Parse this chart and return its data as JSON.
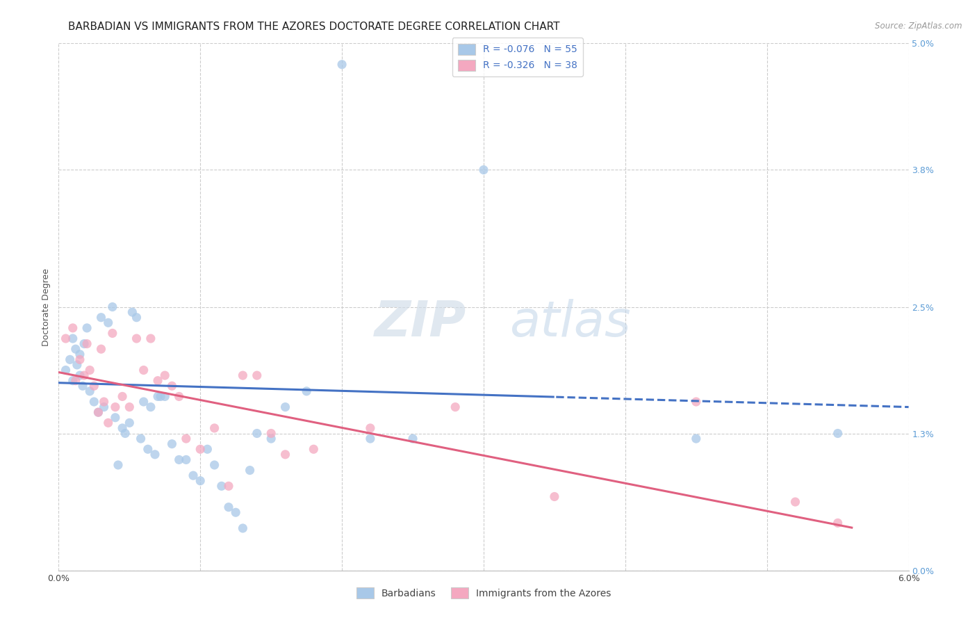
{
  "title": "BARBADIAN VS IMMIGRANTS FROM THE AZORES DOCTORATE DEGREE CORRELATION CHART",
  "source": "Source: ZipAtlas.com",
  "ylabel": "Doctorate Degree",
  "ytick_vals": [
    0.0,
    1.3,
    2.5,
    3.8,
    5.0
  ],
  "xlim": [
    0.0,
    6.0
  ],
  "ylim": [
    0.0,
    5.0
  ],
  "legend_label1": "R = -0.076   N = 55",
  "legend_label2": "R = -0.326   N = 38",
  "legend_bottom1": "Barbadians",
  "legend_bottom2": "Immigrants from the Azores",
  "color_blue": "#a8c8e8",
  "color_pink": "#f4a8c0",
  "color_blue_line": "#4472c4",
  "color_pink_line": "#e06080",
  "watermark_zip": "ZIP",
  "watermark_atlas": "atlas",
  "barbadians_x": [
    0.05,
    0.08,
    0.1,
    0.1,
    0.12,
    0.13,
    0.15,
    0.15,
    0.17,
    0.18,
    0.2,
    0.22,
    0.25,
    0.28,
    0.3,
    0.32,
    0.35,
    0.38,
    0.4,
    0.42,
    0.45,
    0.47,
    0.5,
    0.52,
    0.55,
    0.58,
    0.6,
    0.63,
    0.65,
    0.68,
    0.7,
    0.72,
    0.75,
    0.8,
    0.85,
    0.9,
    0.95,
    1.0,
    1.05,
    1.1,
    1.15,
    1.2,
    1.25,
    1.3,
    1.35,
    1.4,
    1.5,
    1.6,
    1.75,
    2.0,
    2.2,
    2.5,
    3.0,
    4.5,
    5.5
  ],
  "barbadians_y": [
    1.9,
    2.0,
    2.2,
    1.8,
    2.1,
    1.95,
    1.85,
    2.05,
    1.75,
    2.15,
    2.3,
    1.7,
    1.6,
    1.5,
    2.4,
    1.55,
    2.35,
    2.5,
    1.45,
    1.0,
    1.35,
    1.3,
    1.4,
    2.45,
    2.4,
    1.25,
    1.6,
    1.15,
    1.55,
    1.1,
    1.65,
    1.65,
    1.65,
    1.2,
    1.05,
    1.05,
    0.9,
    0.85,
    1.15,
    1.0,
    0.8,
    0.6,
    0.55,
    0.4,
    0.95,
    1.3,
    1.25,
    1.55,
    1.7,
    4.8,
    1.25,
    1.25,
    3.8,
    1.25,
    1.3
  ],
  "azores_x": [
    0.05,
    0.1,
    0.12,
    0.15,
    0.18,
    0.2,
    0.22,
    0.25,
    0.28,
    0.3,
    0.32,
    0.35,
    0.38,
    0.4,
    0.45,
    0.5,
    0.55,
    0.6,
    0.65,
    0.7,
    0.75,
    0.8,
    0.85,
    0.9,
    1.0,
    1.1,
    1.2,
    1.3,
    1.4,
    1.5,
    1.6,
    1.8,
    2.2,
    2.8,
    3.5,
    4.5,
    5.2,
    5.5
  ],
  "azores_y": [
    2.2,
    2.3,
    1.8,
    2.0,
    1.85,
    2.15,
    1.9,
    1.75,
    1.5,
    2.1,
    1.6,
    1.4,
    2.25,
    1.55,
    1.65,
    1.55,
    2.2,
    1.9,
    2.2,
    1.8,
    1.85,
    1.75,
    1.65,
    1.25,
    1.15,
    1.35,
    0.8,
    1.85,
    1.85,
    1.3,
    1.1,
    1.15,
    1.35,
    1.55,
    0.7,
    1.6,
    0.65,
    0.45
  ],
  "title_fontsize": 11,
  "axis_label_fontsize": 9,
  "tick_fontsize": 9,
  "legend_fontsize": 10
}
